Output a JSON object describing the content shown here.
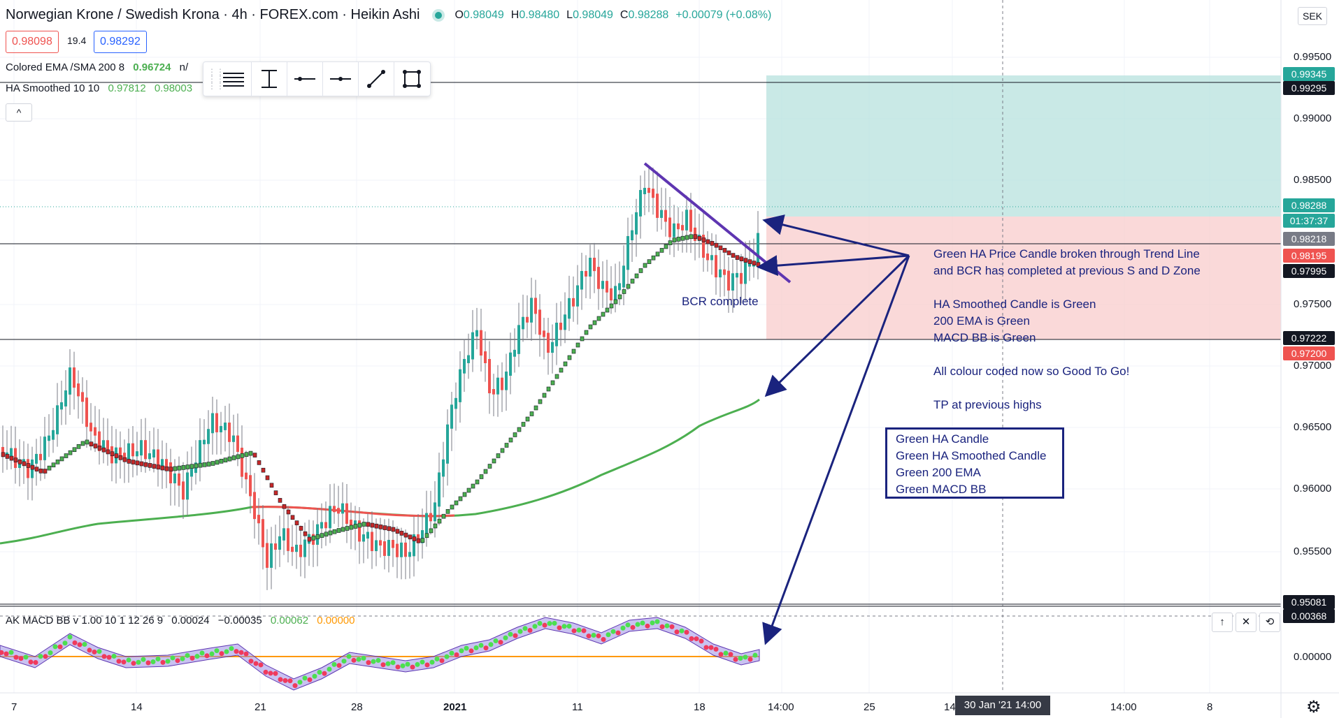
{
  "header": {
    "symbol": "Norwegian Krone / Swedish Krona · 4h · FOREX.com · Heikin Ashi",
    "o_label": "O",
    "o": "0.98049",
    "h_label": "H",
    "h": "0.98480",
    "l_label": "L",
    "l": "0.98049",
    "c_label": "C",
    "c": "0.98288",
    "change": "+0.00079 (+0.08%)"
  },
  "quote": {
    "sell": "0.98098",
    "spread": "19.4",
    "buy": "0.98292"
  },
  "indicators": {
    "ema_name": "Colored EMA /SMA 200 8",
    "ema_value": "0.96724",
    "ema_suffix": "n/",
    "ha_name": "HA Smoothed 10 10",
    "ha_value1": "0.97812",
    "ha_value2": "0.98003"
  },
  "drawing_toolbar": {
    "tools": [
      "grip-icon",
      "horizontal-lines-icon",
      "vertical-range-icon",
      "horizontal-line-icon",
      "horizontal-ray-icon",
      "trend-line-icon",
      "rectangle-icon"
    ]
  },
  "collapse_label": "^",
  "currency": "SEK",
  "price_axis": {
    "ticks": [
      "0.99500",
      "0.99000",
      "0.98500",
      "0.97500",
      "0.97000",
      "0.96500",
      "0.96000",
      "0.95500"
    ],
    "badges": [
      {
        "label": "0.99345",
        "color": "#26a69a"
      },
      {
        "label": "0.99295",
        "color": "#131722"
      },
      {
        "label": "0.98288",
        "color": "#26a69a"
      },
      {
        "label": "01:37:37",
        "color": "#26a69a"
      },
      {
        "label": "0.98218",
        "color": "#787b86"
      },
      {
        "label": "0.98195",
        "color": "#ef5350"
      },
      {
        "label": "0.97995",
        "color": "#131722"
      },
      {
        "label": "0.97222",
        "color": "#131722"
      },
      {
        "label": "0.97200",
        "color": "#ef5350"
      },
      {
        "label": "0.95081",
        "color": "#131722"
      },
      {
        "label": "0.00368",
        "color": "#131722"
      }
    ],
    "macd_tick": "0.00000"
  },
  "time_axis": {
    "ticks": [
      "7",
      "14",
      "21",
      "28",
      "2021",
      "11",
      "18",
      "14:00",
      "25",
      "14:",
      "14:00",
      "8"
    ],
    "crosshair_label": "30 Jan '21   14:00"
  },
  "annotations": {
    "main": "Green HA Price Candle broken through Trend Line\nand BCR has completed at previous S and D Zone\n\nHA Smoothed Candle is Green\n200 EMA is Green\nMACD BB is Green\n\nAll colour coded now so Good To Go!\n\nTP at previous highs",
    "bcr": "BCR complete",
    "checklist": [
      "Green HA Candle",
      "Green HA Smoothed Candle",
      "Green 200 EMA",
      "Green MACD BB"
    ]
  },
  "macd": {
    "name": "AK MACD BB v 1.00 10 1 12 26 9",
    "v1": "0.00024",
    "v2": "−0.00035",
    "v3": "0.00062",
    "v4": "0.00000",
    "buttons": [
      "up-arrow-icon",
      "close-icon",
      "maximize-icon"
    ]
  },
  "colors": {
    "up": "#26a69a",
    "down": "#ef5350",
    "ema": "#4caf50",
    "annotation": "#1a237e",
    "trendline": "#5e35b1"
  },
  "chart_data": {
    "type": "candlestick",
    "price_range": [
      0.9455,
      0.9975
    ],
    "levels": [
      0.99295,
      0.98218,
      0.97222,
      0.95081
    ],
    "position": {
      "entry": 0.98195,
      "target": 0.99345,
      "stop": 0.972
    }
  }
}
